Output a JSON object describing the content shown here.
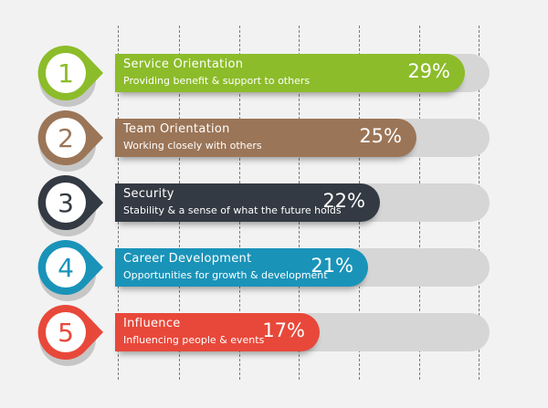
{
  "chart_data": {
    "type": "bar",
    "orientation": "horizontal",
    "unit": "%",
    "items": [
      {
        "rank": "1",
        "title": "Service Orientation",
        "description": "Providing benefit & support to others",
        "value": 29,
        "label": "29%",
        "color": "#8cbc2a",
        "ring_color": "#8cbc2a"
      },
      {
        "rank": "2",
        "title": "Team  Orientation",
        "description": "Working closely with others",
        "value": 25,
        "label": "25%",
        "color": "#9b7557",
        "ring_color": "#9b7557"
      },
      {
        "rank": "3",
        "title": "Security",
        "description": "Stability & a sense of what the future holds",
        "value": 22,
        "label": "22%",
        "color": "#343a43",
        "ring_color": "#343a43"
      },
      {
        "rank": "4",
        "title": "Career  Development",
        "description": "Opportunities for growth & development",
        "value": 21,
        "label": "21%",
        "color": "#1a93b9",
        "ring_color": "#1a93b9"
      },
      {
        "rank": "5",
        "title": "Influence",
        "description": "Influencing people & events",
        "value": 17,
        "label": "17%",
        "color": "#e8483a",
        "ring_color": "#e8483a"
      }
    ],
    "grid": true,
    "track_color": "#d6d6d6",
    "background": "#f2f2f2"
  }
}
